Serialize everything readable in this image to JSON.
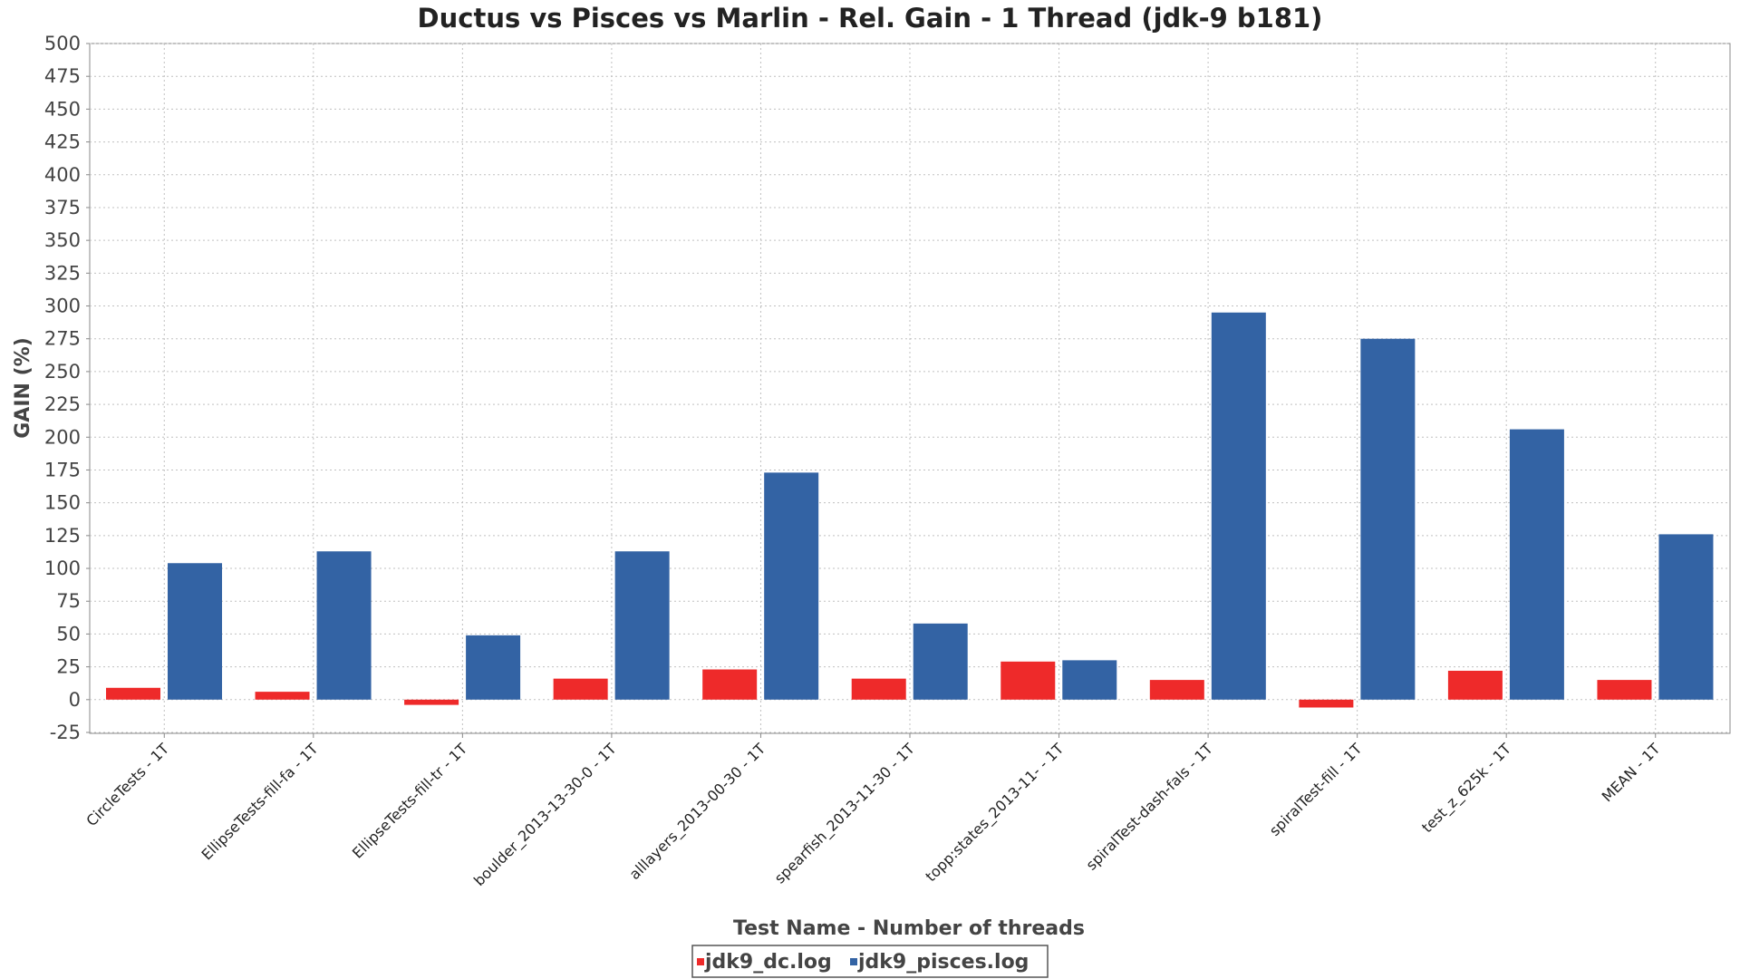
{
  "chart_data": {
    "type": "bar",
    "title": "Ductus vs Pisces vs Marlin - Rel. Gain - 1 Thread (jdk-9 b181)",
    "xlabel": "Test Name - Number of threads",
    "ylabel": "GAIN (%)",
    "ylim": [
      -25,
      500
    ],
    "yticks": [
      -25,
      0,
      25,
      50,
      75,
      100,
      125,
      150,
      175,
      200,
      225,
      250,
      275,
      300,
      325,
      350,
      375,
      400,
      425,
      450,
      475,
      500
    ],
    "grid": true,
    "legend_position": "bottom",
    "categories": [
      "CircleTests - 1T",
      "EllipseTests-fill-fa - 1T",
      "EllipseTests-fill-tr - 1T",
      "boulder_2013-13-30-0 - 1T",
      "alllayers_2013-00-30 - 1T",
      "spearfish_2013-11-30 - 1T",
      "topp:states_2013-11- - 1T",
      "spiralTest-dash-fals - 1T",
      "spiralTest-fill - 1T",
      "test_z_625k - 1T",
      "MEAN - 1T"
    ],
    "series": [
      {
        "name": "jdk9_dc.log",
        "color": "#ee2a2a",
        "values": [
          9,
          6,
          -4,
          16,
          23,
          16,
          29,
          15,
          -6,
          22,
          15
        ]
      },
      {
        "name": "jdk9_pisces.log",
        "color": "#3363a4",
        "values": [
          104,
          113,
          49,
          113,
          173,
          58,
          30,
          295,
          275,
          206,
          126
        ]
      }
    ]
  }
}
